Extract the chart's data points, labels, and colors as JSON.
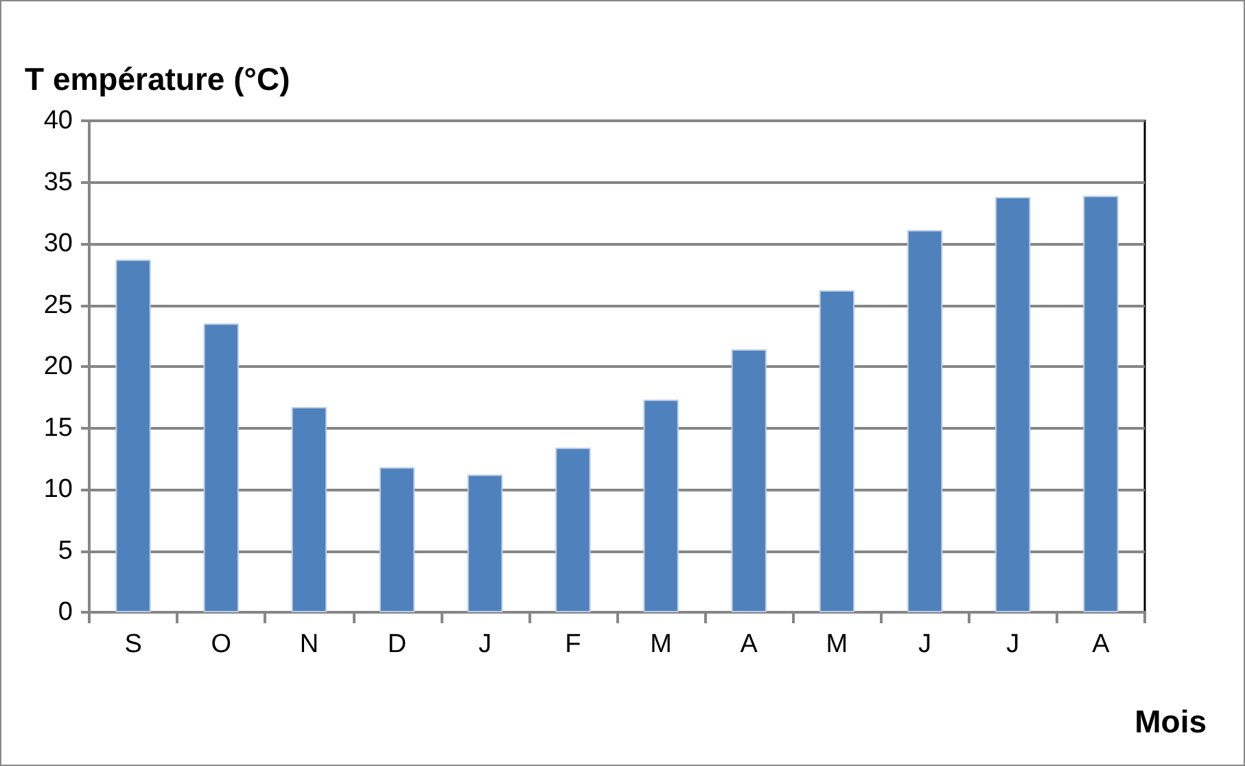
{
  "chart_data": {
    "type": "bar",
    "ylabel": "T empérature (°C)",
    "xlabel": "Mois",
    "categories": [
      "S",
      "O",
      "N",
      "D",
      "J",
      "F",
      "M",
      "A",
      "M",
      "J",
      "J",
      "A"
    ],
    "values": [
      28.7,
      23.5,
      16.7,
      11.8,
      11.2,
      13.4,
      17.3,
      21.4,
      26.2,
      31.1,
      33.8,
      33.9
    ],
    "color": "#4f81bd",
    "ylim": [
      0,
      40
    ],
    "yticks": [
      0,
      5,
      10,
      15,
      20,
      25,
      30,
      35,
      40
    ],
    "grid": "y"
  }
}
